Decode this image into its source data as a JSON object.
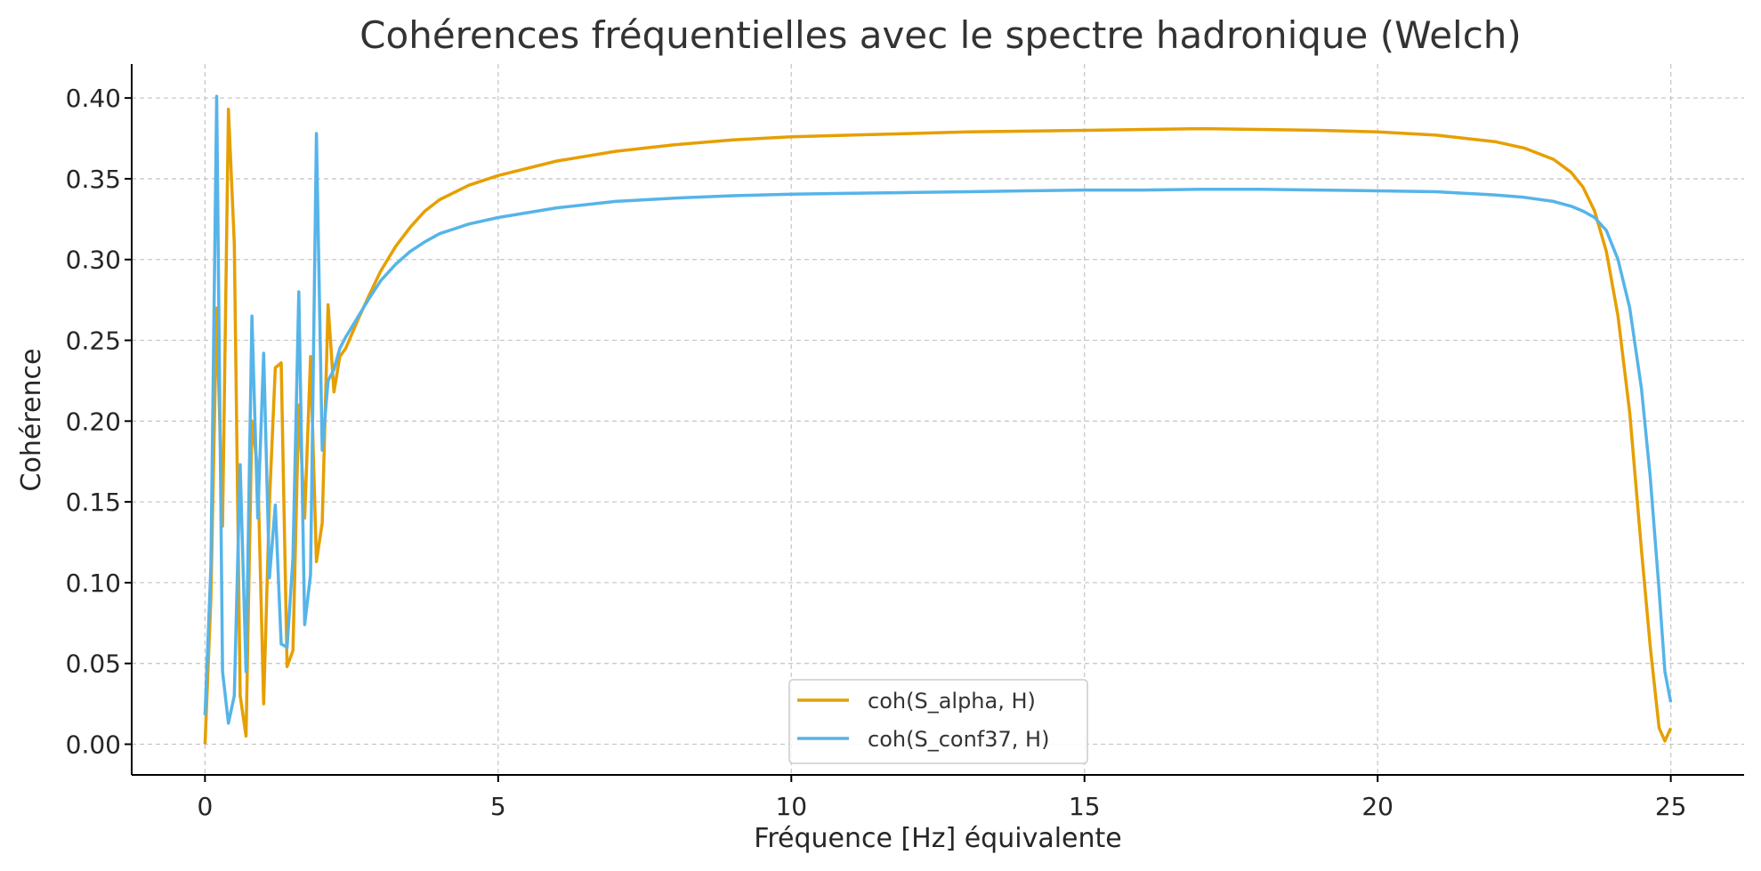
{
  "chart_data": {
    "type": "line",
    "title": "Cohérences fréquentielles avec le spectre hadronique (Welch)",
    "xlabel": "Fréquence [Hz] équivalente",
    "ylabel": "Cohérence",
    "xlim": [
      -1.25,
      26.25
    ],
    "ylim": [
      -0.019,
      0.421
    ],
    "xticks": [
      0,
      5,
      10,
      15,
      20,
      25
    ],
    "xtick_labels": [
      "0",
      "5",
      "10",
      "15",
      "20",
      "25"
    ],
    "yticks": [
      0.0,
      0.05,
      0.1,
      0.15,
      0.2,
      0.25,
      0.3,
      0.35,
      0.4
    ],
    "ytick_labels": [
      "0.00",
      "0.05",
      "0.10",
      "0.15",
      "0.20",
      "0.25",
      "0.30",
      "0.35",
      "0.40"
    ],
    "grid": true,
    "legend_position": "bottom-center",
    "series": [
      {
        "name": "coh(S_alpha, H)",
        "color": "#E69F00",
        "points": [
          [
            0.0,
            0.0
          ],
          [
            0.1,
            0.09
          ],
          [
            0.2,
            0.27
          ],
          [
            0.3,
            0.135
          ],
          [
            0.4,
            0.393
          ],
          [
            0.5,
            0.31
          ],
          [
            0.6,
            0.03
          ],
          [
            0.7,
            0.005
          ],
          [
            0.8,
            0.2
          ],
          [
            0.9,
            0.17
          ],
          [
            1.0,
            0.025
          ],
          [
            1.1,
            0.15
          ],
          [
            1.2,
            0.233
          ],
          [
            1.3,
            0.236
          ],
          [
            1.4,
            0.048
          ],
          [
            1.5,
            0.058
          ],
          [
            1.6,
            0.21
          ],
          [
            1.7,
            0.14
          ],
          [
            1.8,
            0.24
          ],
          [
            1.9,
            0.113
          ],
          [
            2.0,
            0.137
          ],
          [
            2.1,
            0.272
          ],
          [
            2.2,
            0.218
          ],
          [
            2.3,
            0.24
          ],
          [
            2.4,
            0.245
          ],
          [
            2.6,
            0.262
          ],
          [
            2.8,
            0.278
          ],
          [
            3.0,
            0.293
          ],
          [
            3.25,
            0.308
          ],
          [
            3.5,
            0.32
          ],
          [
            3.75,
            0.33
          ],
          [
            4.0,
            0.337
          ],
          [
            4.5,
            0.346
          ],
          [
            5.0,
            0.352
          ],
          [
            6.0,
            0.361
          ],
          [
            7.0,
            0.367
          ],
          [
            8.0,
            0.371
          ],
          [
            9.0,
            0.374
          ],
          [
            10.0,
            0.376
          ],
          [
            11.0,
            0.377
          ],
          [
            12.0,
            0.378
          ],
          [
            13.0,
            0.379
          ],
          [
            14.0,
            0.3795
          ],
          [
            15.0,
            0.38
          ],
          [
            16.0,
            0.3805
          ],
          [
            17.0,
            0.381
          ],
          [
            18.0,
            0.3805
          ],
          [
            19.0,
            0.38
          ],
          [
            20.0,
            0.379
          ],
          [
            21.0,
            0.377
          ],
          [
            22.0,
            0.373
          ],
          [
            22.5,
            0.369
          ],
          [
            23.0,
            0.362
          ],
          [
            23.3,
            0.354
          ],
          [
            23.5,
            0.345
          ],
          [
            23.7,
            0.33
          ],
          [
            23.9,
            0.305
          ],
          [
            24.1,
            0.265
          ],
          [
            24.3,
            0.205
          ],
          [
            24.5,
            0.12
          ],
          [
            24.65,
            0.06
          ],
          [
            24.8,
            0.01
          ],
          [
            24.9,
            0.002
          ],
          [
            25.0,
            0.01
          ]
        ]
      },
      {
        "name": "coh(S_conf37, H)",
        "color": "#56B4E9",
        "points": [
          [
            0.0,
            0.018
          ],
          [
            0.1,
            0.11
          ],
          [
            0.2,
            0.401
          ],
          [
            0.3,
            0.045
          ],
          [
            0.4,
            0.013
          ],
          [
            0.5,
            0.03
          ],
          [
            0.6,
            0.173
          ],
          [
            0.7,
            0.045
          ],
          [
            0.8,
            0.265
          ],
          [
            0.9,
            0.14
          ],
          [
            1.0,
            0.242
          ],
          [
            1.1,
            0.103
          ],
          [
            1.2,
            0.148
          ],
          [
            1.3,
            0.062
          ],
          [
            1.4,
            0.06
          ],
          [
            1.5,
            0.115
          ],
          [
            1.6,
            0.28
          ],
          [
            1.7,
            0.074
          ],
          [
            1.8,
            0.105
          ],
          [
            1.9,
            0.378
          ],
          [
            2.0,
            0.182
          ],
          [
            2.1,
            0.225
          ],
          [
            2.2,
            0.232
          ],
          [
            2.3,
            0.245
          ],
          [
            2.4,
            0.252
          ],
          [
            2.6,
            0.264
          ],
          [
            2.8,
            0.276
          ],
          [
            3.0,
            0.287
          ],
          [
            3.25,
            0.297
          ],
          [
            3.5,
            0.305
          ],
          [
            3.75,
            0.311
          ],
          [
            4.0,
            0.316
          ],
          [
            4.5,
            0.322
          ],
          [
            5.0,
            0.326
          ],
          [
            6.0,
            0.332
          ],
          [
            7.0,
            0.336
          ],
          [
            8.0,
            0.338
          ],
          [
            9.0,
            0.3395
          ],
          [
            10.0,
            0.3405
          ],
          [
            11.0,
            0.341
          ],
          [
            12.0,
            0.3415
          ],
          [
            13.0,
            0.342
          ],
          [
            14.0,
            0.3425
          ],
          [
            15.0,
            0.343
          ],
          [
            16.0,
            0.343
          ],
          [
            17.0,
            0.3435
          ],
          [
            18.0,
            0.3435
          ],
          [
            19.0,
            0.343
          ],
          [
            20.0,
            0.3425
          ],
          [
            21.0,
            0.342
          ],
          [
            22.0,
            0.34
          ],
          [
            22.5,
            0.3385
          ],
          [
            23.0,
            0.336
          ],
          [
            23.3,
            0.333
          ],
          [
            23.5,
            0.33
          ],
          [
            23.7,
            0.326
          ],
          [
            23.9,
            0.318
          ],
          [
            24.1,
            0.3
          ],
          [
            24.3,
            0.27
          ],
          [
            24.5,
            0.22
          ],
          [
            24.65,
            0.165
          ],
          [
            24.8,
            0.095
          ],
          [
            24.9,
            0.045
          ],
          [
            25.0,
            0.026
          ]
        ]
      }
    ]
  }
}
